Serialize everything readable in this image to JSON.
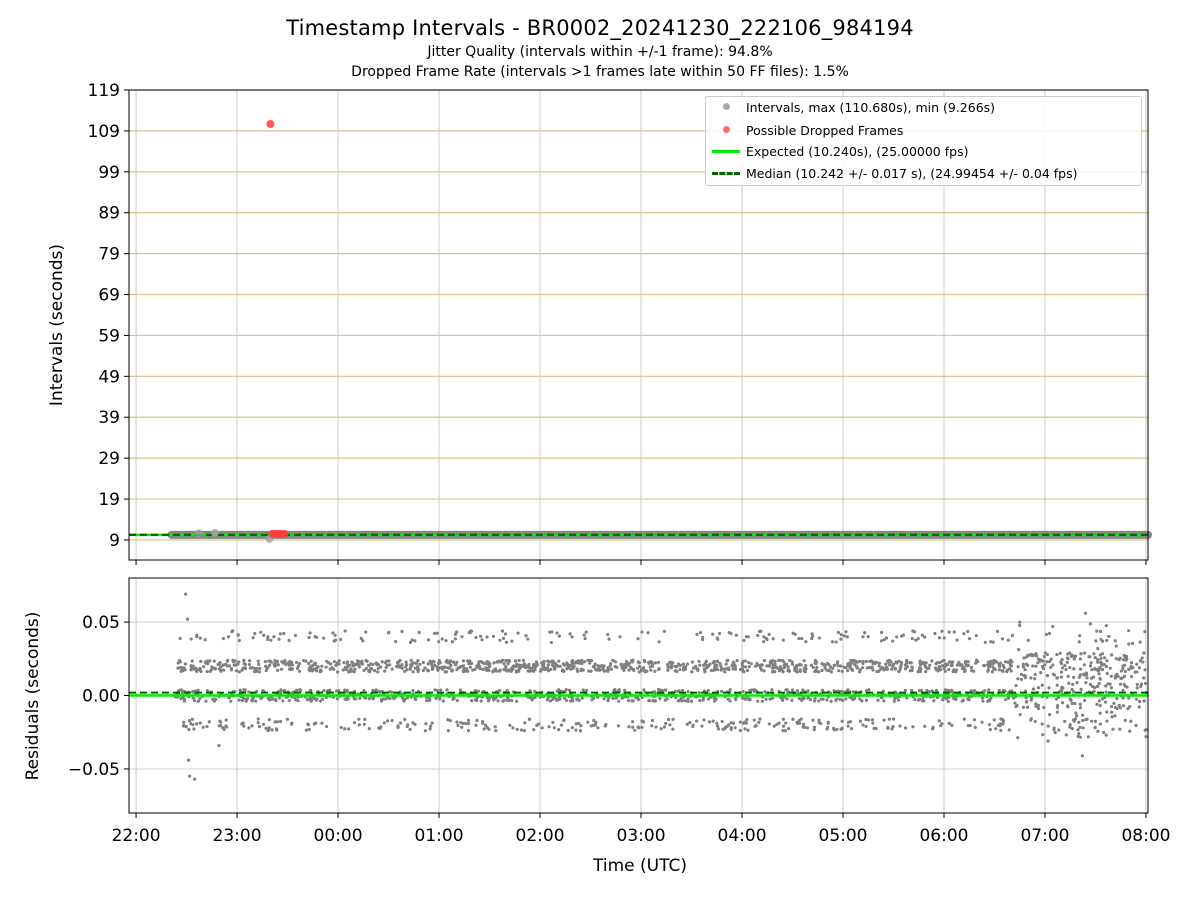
{
  "title": "Timestamp Intervals - BR0002_20241230_222106_984194",
  "subtitle_lines": [
    "Jitter Quality (intervals within +/-1 frame): 94.8%",
    "Dropped Frame Rate (intervals >1 frames late within 50 FF files): 1.5%"
  ],
  "colors": {
    "intervals": "#808080",
    "dropped": "#ff3b3b",
    "expected": "#00ee00",
    "median": "#006400",
    "y_grid_top": "#d4c48a",
    "x_grid": "#cccccc"
  },
  "legend": [
    {
      "label": "Intervals, max (110.680s), min (9.266s)",
      "marker": "dot",
      "color": "#a8a8a8"
    },
    {
      "label": "Possible Dropped Frames",
      "marker": "dot",
      "color": "#ff6a6a"
    },
    {
      "label": "Expected (10.240s), (25.00000 fps)",
      "marker": "line",
      "color": "#00ee00"
    },
    {
      "label": "Median (10.242 +/- 0.017 s), (24.99454 +/- 0.04 fps)",
      "marker": "dashed",
      "color": "#006400"
    }
  ],
  "chart_data": [
    {
      "type": "scatter",
      "panel": "top",
      "ylabel": "Intervals (seconds)",
      "xlabel": "",
      "x_ticks": [
        "22:00",
        "23:00",
        "00:00",
        "01:00",
        "02:00",
        "03:00",
        "04:00",
        "05:00",
        "06:00",
        "07:00",
        "08:00"
      ],
      "y_ticks": [
        9,
        19,
        29,
        39,
        49,
        59,
        69,
        79,
        89,
        99,
        109,
        119
      ],
      "ylim": [
        4.1,
        119
      ],
      "xlim_hours": [
        21.93,
        32.02
      ],
      "data_start_hours": 22.35,
      "data_end_hours": 32.02,
      "expected": 10.24,
      "median": 10.242,
      "interval_max": 110.68,
      "interval_min": 9.266,
      "series": [
        {
          "name": "Intervals, max (110.680s), min (9.266s)",
          "points": [
            [
              23.32,
              9.266
            ],
            [
              22.78,
              10.7
            ],
            [
              22.62,
              10.6
            ]
          ]
        },
        {
          "name": "Possible Dropped Frames",
          "points": [
            [
              23.33,
              110.68
            ],
            [
              23.35,
              10.5
            ],
            [
              23.38,
              10.5
            ],
            [
              23.41,
              10.5
            ],
            [
              23.44,
              10.5
            ],
            [
              23.47,
              10.5
            ]
          ]
        }
      ],
      "grid": true
    },
    {
      "type": "scatter",
      "panel": "bottom",
      "ylabel": "Residuals (seconds)",
      "xlabel": "Time (UTC)",
      "x_ticks": [
        "22:00",
        "23:00",
        "00:00",
        "01:00",
        "02:00",
        "03:00",
        "04:00",
        "05:00",
        "06:00",
        "07:00",
        "08:00"
      ],
      "y_ticks": [
        "0.05",
        "0.00",
        "−0.05"
      ],
      "y_tick_values": [
        0.05,
        0.0,
        -0.05
      ],
      "ylim": [
        -0.08,
        0.08
      ],
      "residual_levels": [
        -0.02,
        0.0,
        0.02,
        0.04
      ],
      "outliers": [
        [
          22.49,
          0.069
        ],
        [
          22.51,
          0.052
        ],
        [
          22.53,
          -0.055
        ],
        [
          22.58,
          -0.057
        ],
        [
          22.52,
          -0.044
        ],
        [
          22.82,
          -0.034
        ],
        [
          31.37,
          -0.041
        ],
        [
          31.4,
          0.056
        ],
        [
          31.03,
          -0.031
        ],
        [
          30.75,
          0.05
        ],
        [
          32.0,
          -0.028
        ]
      ],
      "grid": true
    }
  ]
}
